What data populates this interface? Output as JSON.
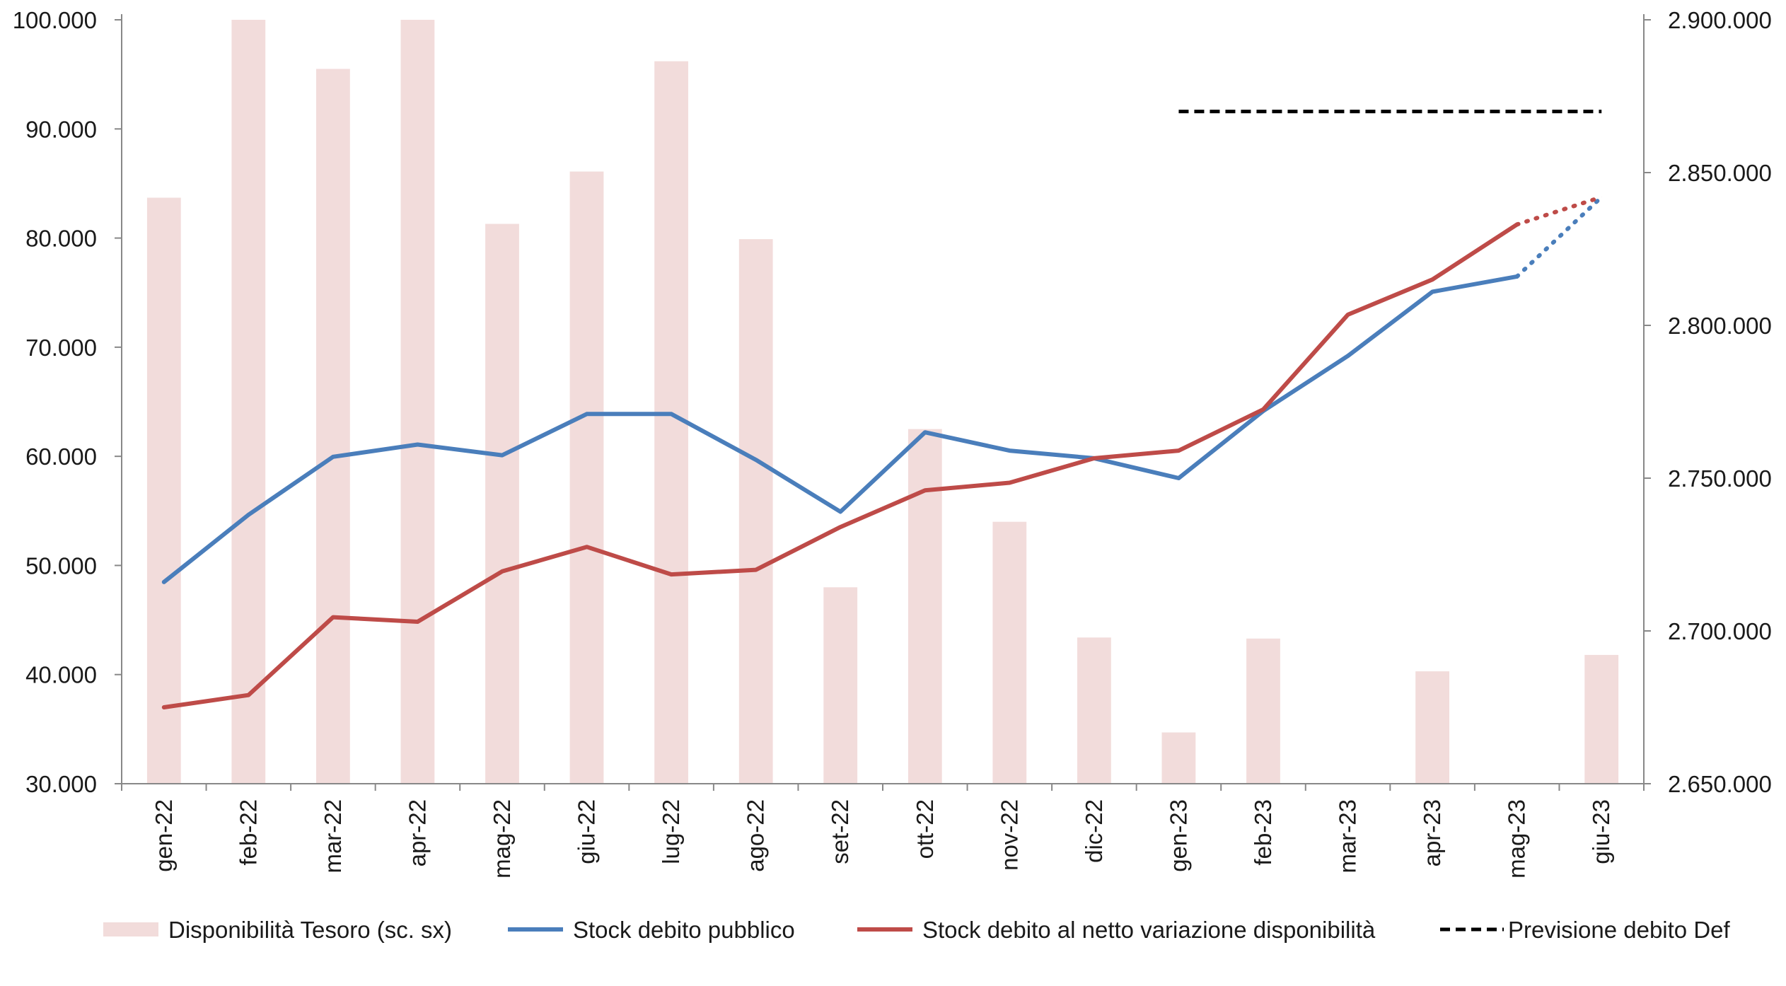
{
  "chart_data": {
    "type": "bar+line",
    "title": "",
    "categories": [
      "gen-22",
      "feb-22",
      "mar-22",
      "apr-22",
      "mag-22",
      "giu-22",
      "lug-22",
      "ago-22",
      "set-22",
      "ott-22",
      "nov-22",
      "dic-22",
      "gen-23",
      "feb-23",
      "mar-23",
      "apr-23",
      "mag-23",
      "giu-23"
    ],
    "y_left": {
      "ylim": [
        30000,
        100000
      ],
      "ticks": [
        30000,
        40000,
        50000,
        60000,
        70000,
        80000,
        90000,
        100000
      ],
      "tick_labels": [
        "30.000",
        "40.000",
        "50.000",
        "60.000",
        "70.000",
        "80.000",
        "90.000",
        "100.000"
      ]
    },
    "y_right": {
      "ylim": [
        2650000,
        2900000
      ],
      "ticks": [
        2650000,
        2700000,
        2750000,
        2800000,
        2850000,
        2900000
      ],
      "tick_labels": [
        "2.650.000",
        "2.700.000",
        "2.750.000",
        "2.800.000",
        "2.850.000",
        "2.900.000"
      ]
    },
    "grid": false,
    "legend_position": "bottom",
    "series": [
      {
        "name": "Disponibilità Tesoro (sc. sx)",
        "kind": "bar",
        "axis": "left",
        "color": "#f2dcdb",
        "values": [
          83700,
          102000,
          95500,
          101000,
          81300,
          86100,
          96200,
          79900,
          48000,
          62500,
          54000,
          43400,
          34700,
          43300,
          null,
          40300,
          null,
          41800
        ]
      },
      {
        "name": "Stock debito pubblico",
        "kind": "line",
        "axis": "right",
        "color": "#4a7ebb",
        "values": [
          2716000,
          2738000,
          2757000,
          2761000,
          2757500,
          2771000,
          2771000,
          2756000,
          2739000,
          2765000,
          2759000,
          2756500,
          2750000,
          2772000,
          2790000,
          2811000,
          2816000,
          2842000
        ],
        "dotted_from_index": 16
      },
      {
        "name": "Stock debito al netto variazione disponibilità",
        "kind": "line",
        "axis": "right",
        "color": "#be4b48",
        "values": [
          2675000,
          2679000,
          2704500,
          2703000,
          2719500,
          2727500,
          2718500,
          2720000,
          2734000,
          2746000,
          2748500,
          2756500,
          2759000,
          2772500,
          2803500,
          2815000,
          2833000,
          2842000
        ],
        "dotted_from_index": 16
      },
      {
        "name": "Previsione debito Def",
        "kind": "line-dashed",
        "axis": "right",
        "color": "#000000",
        "x_range": [
          "gen-23",
          "giu-23"
        ],
        "value": 2870000
      }
    ]
  }
}
